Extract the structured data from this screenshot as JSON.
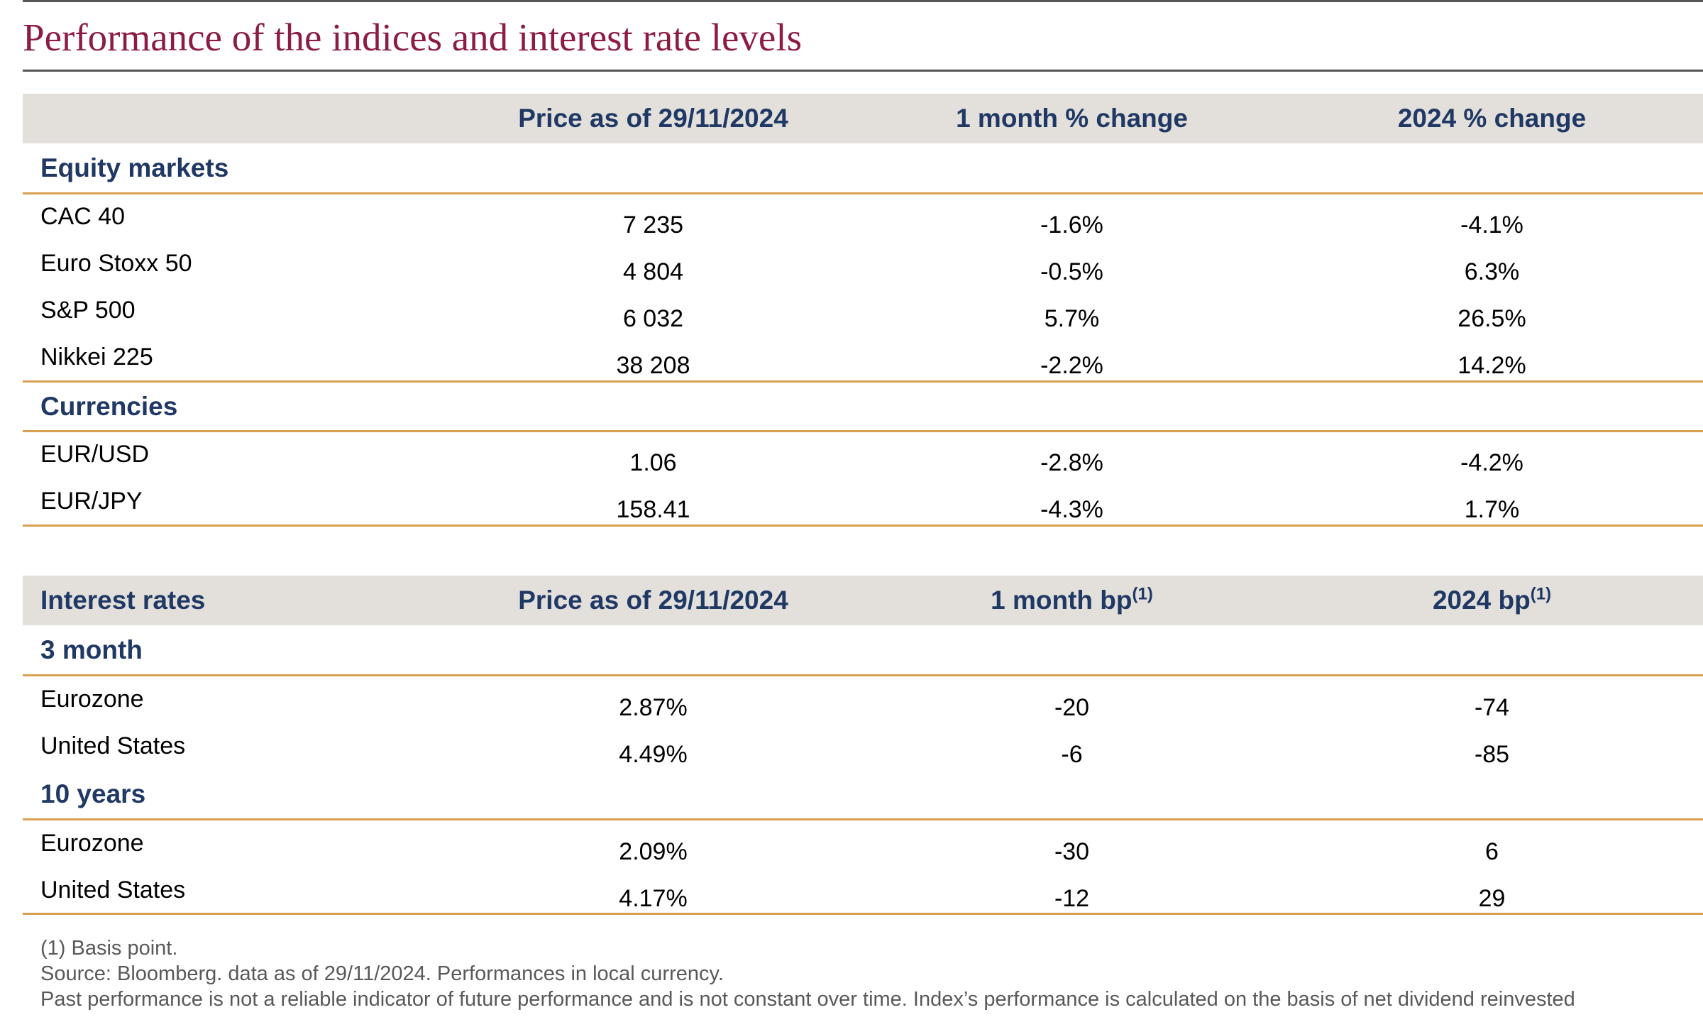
{
  "title": "Performance of the indices and interest rate levels",
  "table1": {
    "headers": [
      "",
      "Price as of 29/11/2024",
      "1 month % change",
      "2024 % change"
    ],
    "sections": [
      {
        "label": "Equity markets",
        "rows": [
          {
            "name": "CAC 40",
            "price": "7 235",
            "m1": "-1.6%",
            "ytd": "-4.1%"
          },
          {
            "name": "Euro Stoxx 50",
            "price": "4 804",
            "m1": "-0.5%",
            "ytd": "6.3%"
          },
          {
            "name": "S&P 500",
            "price": "6 032",
            "m1": "5.7%",
            "ytd": "26.5%"
          },
          {
            "name": "Nikkei 225",
            "price": "38 208",
            "m1": "-2.2%",
            "ytd": "14.2%"
          }
        ]
      },
      {
        "label": "Currencies",
        "rows": [
          {
            "name": "EUR/USD",
            "price": "1.06",
            "m1": "-2.8%",
            "ytd": "-4.2%"
          },
          {
            "name": "EUR/JPY",
            "price": "158.41",
            "m1": "-4.3%",
            "ytd": "1.7%"
          }
        ]
      }
    ]
  },
  "table2": {
    "headers": [
      "Interest rates",
      "Price as of 29/11/2024",
      "1 month bp",
      "2024 bp"
    ],
    "superscript": "(1)",
    "sections": [
      {
        "label": "3 month",
        "rows": [
          {
            "name": "Eurozone",
            "price": "2.87%",
            "m1": "-20",
            "ytd": "-74"
          },
          {
            "name": "United States",
            "price": "4.49%",
            "m1": "-6",
            "ytd": "-85"
          }
        ]
      },
      {
        "label": "10 years",
        "rows": [
          {
            "name": "Eurozone",
            "price": "2.09%",
            "m1": "-30",
            "ytd": "6"
          },
          {
            "name": "United States",
            "price": "4.17%",
            "m1": "-12",
            "ytd": "29"
          }
        ]
      }
    ]
  },
  "footnotes": [
    "(1) Basis point.",
    "Source: Bloomberg. data as of 29/11/2024. Performances in local currency.",
    "Past performance is not a reliable indicator of future performance and is not constant over time. Index’s performance is calculated on the basis of net dividend reinvested"
  ],
  "colors": {
    "title": "#8c1d40",
    "header_text": "#1f3864",
    "header_band": "#e3e0dc",
    "rule": "#d9a04f"
  }
}
